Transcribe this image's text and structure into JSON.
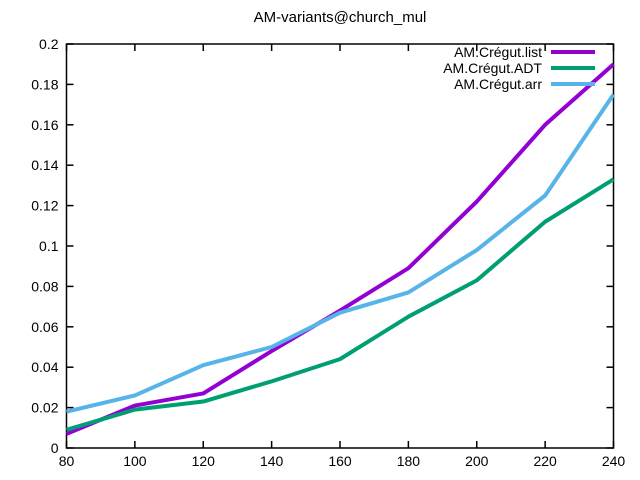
{
  "window": {
    "background": "#ffffff"
  },
  "chart_data": {
    "type": "line",
    "title": "AM-variants@church_mul",
    "xlabel": "",
    "ylabel": "",
    "xlim": [
      80,
      240
    ],
    "ylim": [
      0,
      0.2
    ],
    "grid": false,
    "legend_position": "top-right-inside",
    "axis_color": "#000000",
    "text_color": "#000000",
    "x": [
      80,
      100,
      120,
      140,
      160,
      180,
      200,
      220,
      240
    ],
    "series": [
      {
        "name": "AM.Crégut.list",
        "color": "#9400d3",
        "values": [
          0.007,
          0.021,
          0.027,
          0.048,
          0.068,
          0.089,
          0.122,
          0.16,
          0.19
        ]
      },
      {
        "name": "AM.Crégut.ADT",
        "color": "#009e73",
        "values": [
          0.009,
          0.019,
          0.023,
          0.033,
          0.044,
          0.065,
          0.083,
          0.112,
          0.133
        ]
      },
      {
        "name": "AM.Crégut.arr",
        "color": "#56b4e9",
        "values": [
          0.018,
          0.026,
          0.041,
          0.05,
          0.067,
          0.077,
          0.098,
          0.125,
          0.175
        ]
      }
    ],
    "xticks": {
      "values": [
        80,
        100,
        120,
        140,
        160,
        180,
        200,
        220,
        240
      ],
      "labels": [
        "80",
        "100",
        "120",
        "140",
        "160",
        "180",
        "200",
        "220",
        "240"
      ]
    },
    "yticks": {
      "values": [
        0,
        0.02,
        0.04,
        0.06,
        0.08,
        0.1,
        0.12,
        0.14,
        0.16,
        0.18,
        0.2
      ],
      "labels": [
        "0",
        "0.02",
        "0.04",
        "0.06",
        "0.08",
        "0.1",
        "0.12",
        "0.14",
        "0.16",
        "0.18",
        "0.2"
      ]
    }
  }
}
